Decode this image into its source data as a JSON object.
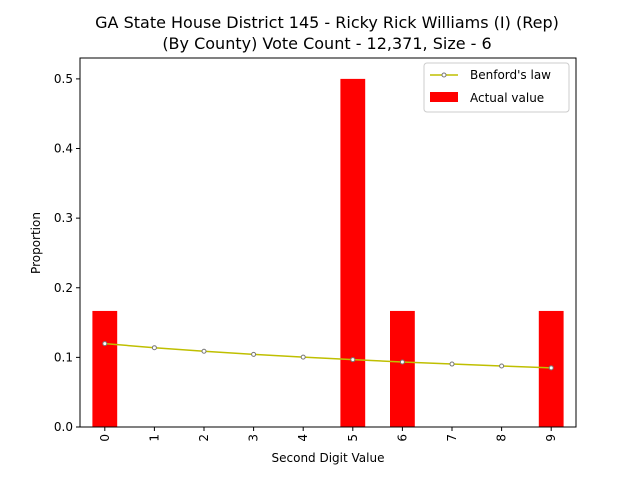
{
  "chart_data": {
    "type": "bar",
    "title_line1": "GA State House District 145 - Ricky Rick Williams (I) (Rep)",
    "title_line2": "(By County) Vote Count - 12,371, Size - 6",
    "xlabel": "Second Digit Value",
    "ylabel": "Proportion",
    "categories": [
      "0",
      "1",
      "2",
      "3",
      "4",
      "5",
      "6",
      "7",
      "8",
      "9"
    ],
    "ylim": [
      0,
      0.53
    ],
    "yticks": [
      0.0,
      0.1,
      0.2,
      0.3,
      0.4,
      0.5
    ],
    "ytick_labels": [
      "0.0",
      "0.1",
      "0.2",
      "0.3",
      "0.4",
      "0.5"
    ],
    "series": [
      {
        "name": "Actual value",
        "kind": "bar",
        "color": "#ff0000",
        "values": [
          0.1667,
          0,
          0,
          0,
          0,
          0.5,
          0.1667,
          0,
          0,
          0.1667
        ]
      },
      {
        "name": "Benford's law",
        "kind": "line",
        "color": "#bfbf00",
        "values": [
          0.1197,
          0.1139,
          0.1088,
          0.1043,
          0.1003,
          0.0967,
          0.0934,
          0.0904,
          0.0876,
          0.085
        ]
      }
    ],
    "legend": {
      "position": "top-right",
      "entries": [
        "Benford's law",
        "Actual value"
      ]
    },
    "grid": false
  }
}
